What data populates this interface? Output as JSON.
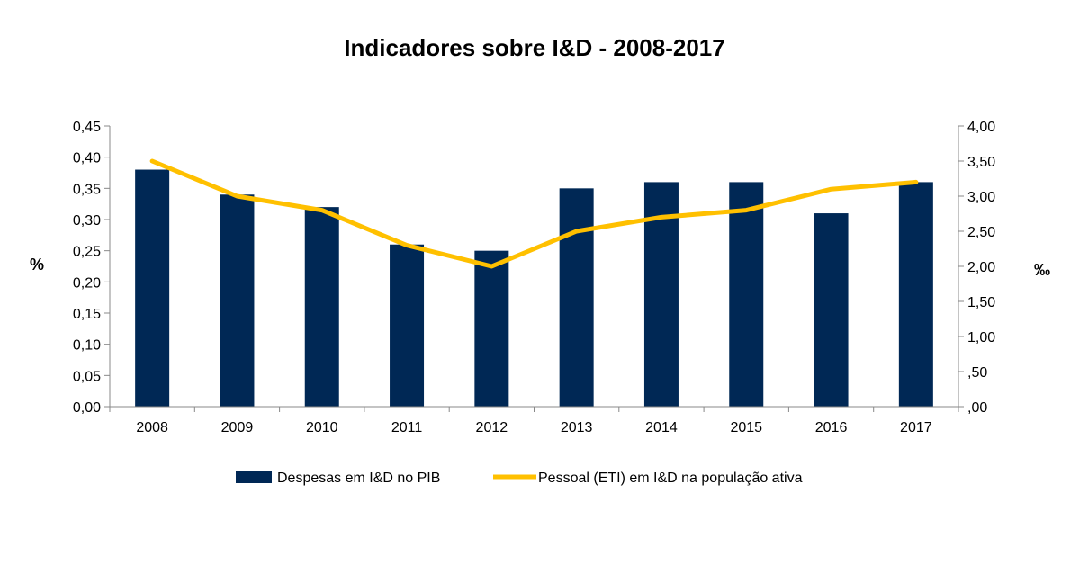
{
  "chart_data": {
    "type": "bar+line",
    "title": "Indicadores sobre I&D - 2008-2017",
    "categories": [
      "2008",
      "2009",
      "2010",
      "2011",
      "2012",
      "2013",
      "2014",
      "2015",
      "2016",
      "2017"
    ],
    "series": [
      {
        "name": "Despesas em I&D no PIB",
        "type": "bar",
        "axis": "left",
        "color": "#002855",
        "values": [
          0.38,
          0.34,
          0.32,
          0.26,
          0.25,
          0.35,
          0.36,
          0.36,
          0.31,
          0.36
        ]
      },
      {
        "name": "Pessoal (ETI) em I&D na população ativa",
        "type": "line",
        "axis": "right",
        "color": "#FFC000",
        "values": [
          3.5,
          3.0,
          2.8,
          2.3,
          2.0,
          2.5,
          2.7,
          2.8,
          3.1,
          3.2
        ]
      }
    ],
    "ylabel_left": "%",
    "ylabel_right": "‰",
    "ylim_left": [
      0,
      0.45
    ],
    "ylim_right": [
      0,
      4.0
    ],
    "yticks_left": [
      "0,00",
      "0,05",
      "0,10",
      "0,15",
      "0,20",
      "0,25",
      "0,30",
      "0,35",
      "0,40",
      "0,45"
    ],
    "yticks_right": [
      ",00",
      ",50",
      "1,00",
      "1,50",
      "2,00",
      "2,50",
      "3,00",
      "3,50",
      "4,00"
    ],
    "grid": false,
    "legend": "bottom"
  }
}
